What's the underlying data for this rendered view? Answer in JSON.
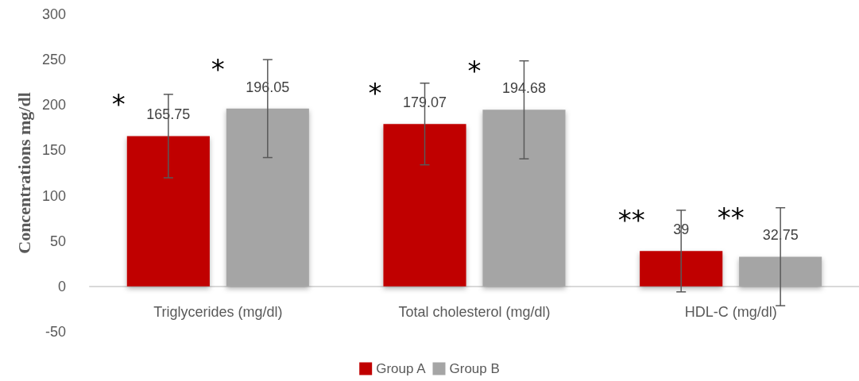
{
  "chart_data": {
    "type": "bar",
    "ylabel": "Concentrations mg/dl",
    "categories": [
      "Triglycerides (mg/dl)",
      "Total cholesterol (mg/dl)",
      "HDL-C (mg/dl)"
    ],
    "series": [
      {
        "name": "Group A",
        "color": "#c00000",
        "values": [
          165.75,
          179.07,
          39
        ],
        "errors": [
          46,
          45,
          45
        ]
      },
      {
        "name": "Group B",
        "color": "#a5a5a5",
        "values": [
          196.05,
          194.68,
          32.75
        ],
        "errors": [
          54,
          54,
          54
        ]
      }
    ],
    "ylim": [
      -50,
      300
    ],
    "yticks": [
      -50,
      0,
      50,
      100,
      150,
      200,
      250,
      300
    ],
    "data_labels": true,
    "grid": false,
    "legend": "bottom",
    "annotations": [
      "*",
      "*",
      "*",
      "*",
      "**",
      "**"
    ]
  }
}
